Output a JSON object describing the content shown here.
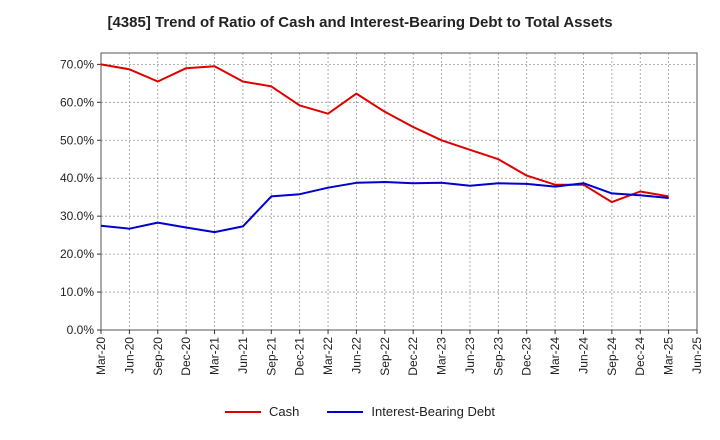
{
  "chart_data": {
    "type": "line",
    "title": "[4385]  Trend of Ratio of Cash and Interest-Bearing Debt to Total Assets",
    "x": [
      "Mar-20",
      "Jun-20",
      "Sep-20",
      "Dec-20",
      "Mar-21",
      "Jun-21",
      "Sep-21",
      "Dec-21",
      "Mar-22",
      "Jun-22",
      "Sep-22",
      "Dec-22",
      "Mar-23",
      "Jun-23",
      "Sep-23",
      "Dec-23",
      "Mar-24",
      "Jun-24",
      "Sep-24",
      "Dec-24",
      "Mar-25",
      "Jun-25"
    ],
    "y_ticks": [
      "0.0%",
      "10.0%",
      "20.0%",
      "30.0%",
      "40.0%",
      "50.0%",
      "60.0%",
      "70.0%"
    ],
    "ylim": [
      0,
      73
    ],
    "grid": true,
    "legend_position": "bottom",
    "series": [
      {
        "name": "Cash",
        "color": "#e00000",
        "values": [
          70.0,
          68.7,
          65.5,
          69.0,
          69.5,
          65.5,
          64.2,
          59.2,
          57.0,
          62.3,
          57.5,
          53.5,
          50.0,
          47.5,
          45.0,
          40.7,
          38.3,
          38.3,
          33.7,
          36.5,
          35.2,
          null
        ]
      },
      {
        "name": "Interest-Bearing Debt",
        "color": "#0000d0",
        "values": [
          27.5,
          26.7,
          28.3,
          27.0,
          25.8,
          27.3,
          35.2,
          35.8,
          37.5,
          38.8,
          39.0,
          38.7,
          38.8,
          38.0,
          38.7,
          38.5,
          37.8,
          38.7,
          36.0,
          35.5,
          34.8,
          null
        ]
      }
    ]
  }
}
